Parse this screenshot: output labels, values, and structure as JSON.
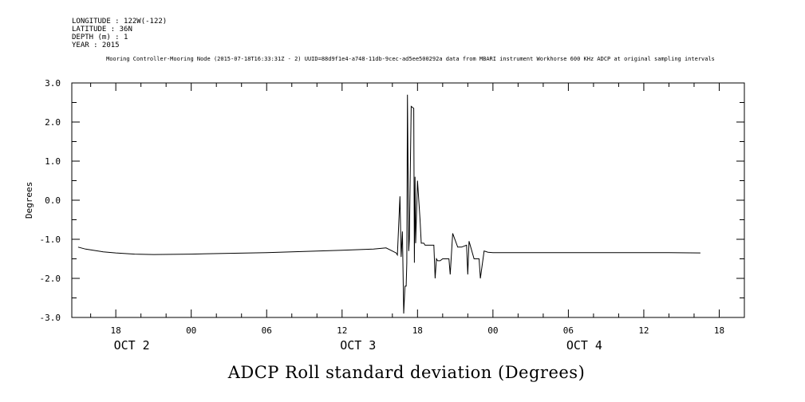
{
  "header": {
    "longitude": "LONGITUDE : 122W(-122)",
    "latitude": "LATITUDE : 36N",
    "depth": "DEPTH (m) : 1",
    "year": "YEAR : 2015",
    "subtitle": "Mooring Controller-Mooring Node (2015-07-18T16:33:31Z - 2) UUID=88d9f1e4-a748-11db-9cec-ad5ee500292a data from MBARI instrument Workhorse 600 KHz ADCP at original sampling intervals"
  },
  "chart_data": {
    "type": "line",
    "title": "ADCP Roll standard deviation (Degrees)",
    "ylabel": "Degrees",
    "xlabel": "",
    "ylim": [
      -3.0,
      3.0
    ],
    "xlim_hours": [
      14.5,
      68
    ],
    "y_ticks": [
      "3.0",
      "2.0",
      "1.0",
      "0.0",
      "-1.0",
      "-2.0",
      "-3.0"
    ],
    "x_ticks": [
      {
        "label": "18",
        "hour": 18
      },
      {
        "label": "00",
        "hour": 24
      },
      {
        "label": "06",
        "hour": 30
      },
      {
        "label": "12",
        "hour": 36
      },
      {
        "label": "18",
        "hour": 42
      },
      {
        "label": "00",
        "hour": 48
      },
      {
        "label": "06",
        "hour": 54
      },
      {
        "label": "12",
        "hour": 60
      },
      {
        "label": "18",
        "hour": 66
      }
    ],
    "day_labels": [
      {
        "label": "OCT  2",
        "hour": 18
      },
      {
        "label": "OCT  3",
        "hour": 36
      },
      {
        "label": "OCT  4",
        "hour": 54
      }
    ],
    "series": [
      {
        "x": [
          15.0,
          15.6,
          16.2,
          17.0,
          18.0,
          19.5,
          21.0,
          24.0,
          27.0,
          30.0,
          33.0,
          36.0,
          38.5,
          39.5,
          40.3,
          40.4,
          40.6,
          40.7,
          40.8,
          40.9,
          41.0,
          41.1,
          41.15,
          41.2,
          41.3,
          41.35,
          41.5,
          41.7,
          41.75,
          41.8,
          41.85,
          42.0,
          42.2,
          42.3,
          42.5,
          42.6,
          42.8,
          43.0,
          43.3,
          43.4,
          43.5,
          43.6,
          43.8,
          44.0,
          44.5,
          44.6,
          44.8,
          45.2,
          45.5,
          45.9,
          46.0,
          46.1,
          46.5,
          46.9,
          47.0,
          47.3,
          47.6,
          48.0,
          50.0,
          52.0,
          54.0,
          56.0,
          58.0,
          60.0,
          62.0,
          64.5
        ],
        "y": [
          -1.2,
          -1.25,
          -1.28,
          -1.32,
          -1.35,
          -1.38,
          -1.39,
          -1.38,
          -1.36,
          -1.34,
          -1.31,
          -1.28,
          -1.25,
          -1.22,
          -1.35,
          -1.4,
          0.1,
          -1.45,
          -0.8,
          -2.9,
          -2.2,
          -2.2,
          -1.6,
          2.7,
          -1.3,
          -1.0,
          2.4,
          2.35,
          -1.6,
          0.6,
          -1.1,
          0.5,
          -0.5,
          -1.1,
          -1.1,
          -1.15,
          -1.15,
          -1.15,
          -1.15,
          -2.0,
          -1.5,
          -1.55,
          -1.55,
          -1.5,
          -1.5,
          -1.9,
          -0.85,
          -1.2,
          -1.2,
          -1.15,
          -1.9,
          -1.05,
          -1.5,
          -1.5,
          -2.0,
          -1.3,
          -1.33,
          -1.34,
          -1.34,
          -1.34,
          -1.34,
          -1.34,
          -1.34,
          -1.34,
          -1.34,
          -1.35
        ]
      }
    ]
  }
}
